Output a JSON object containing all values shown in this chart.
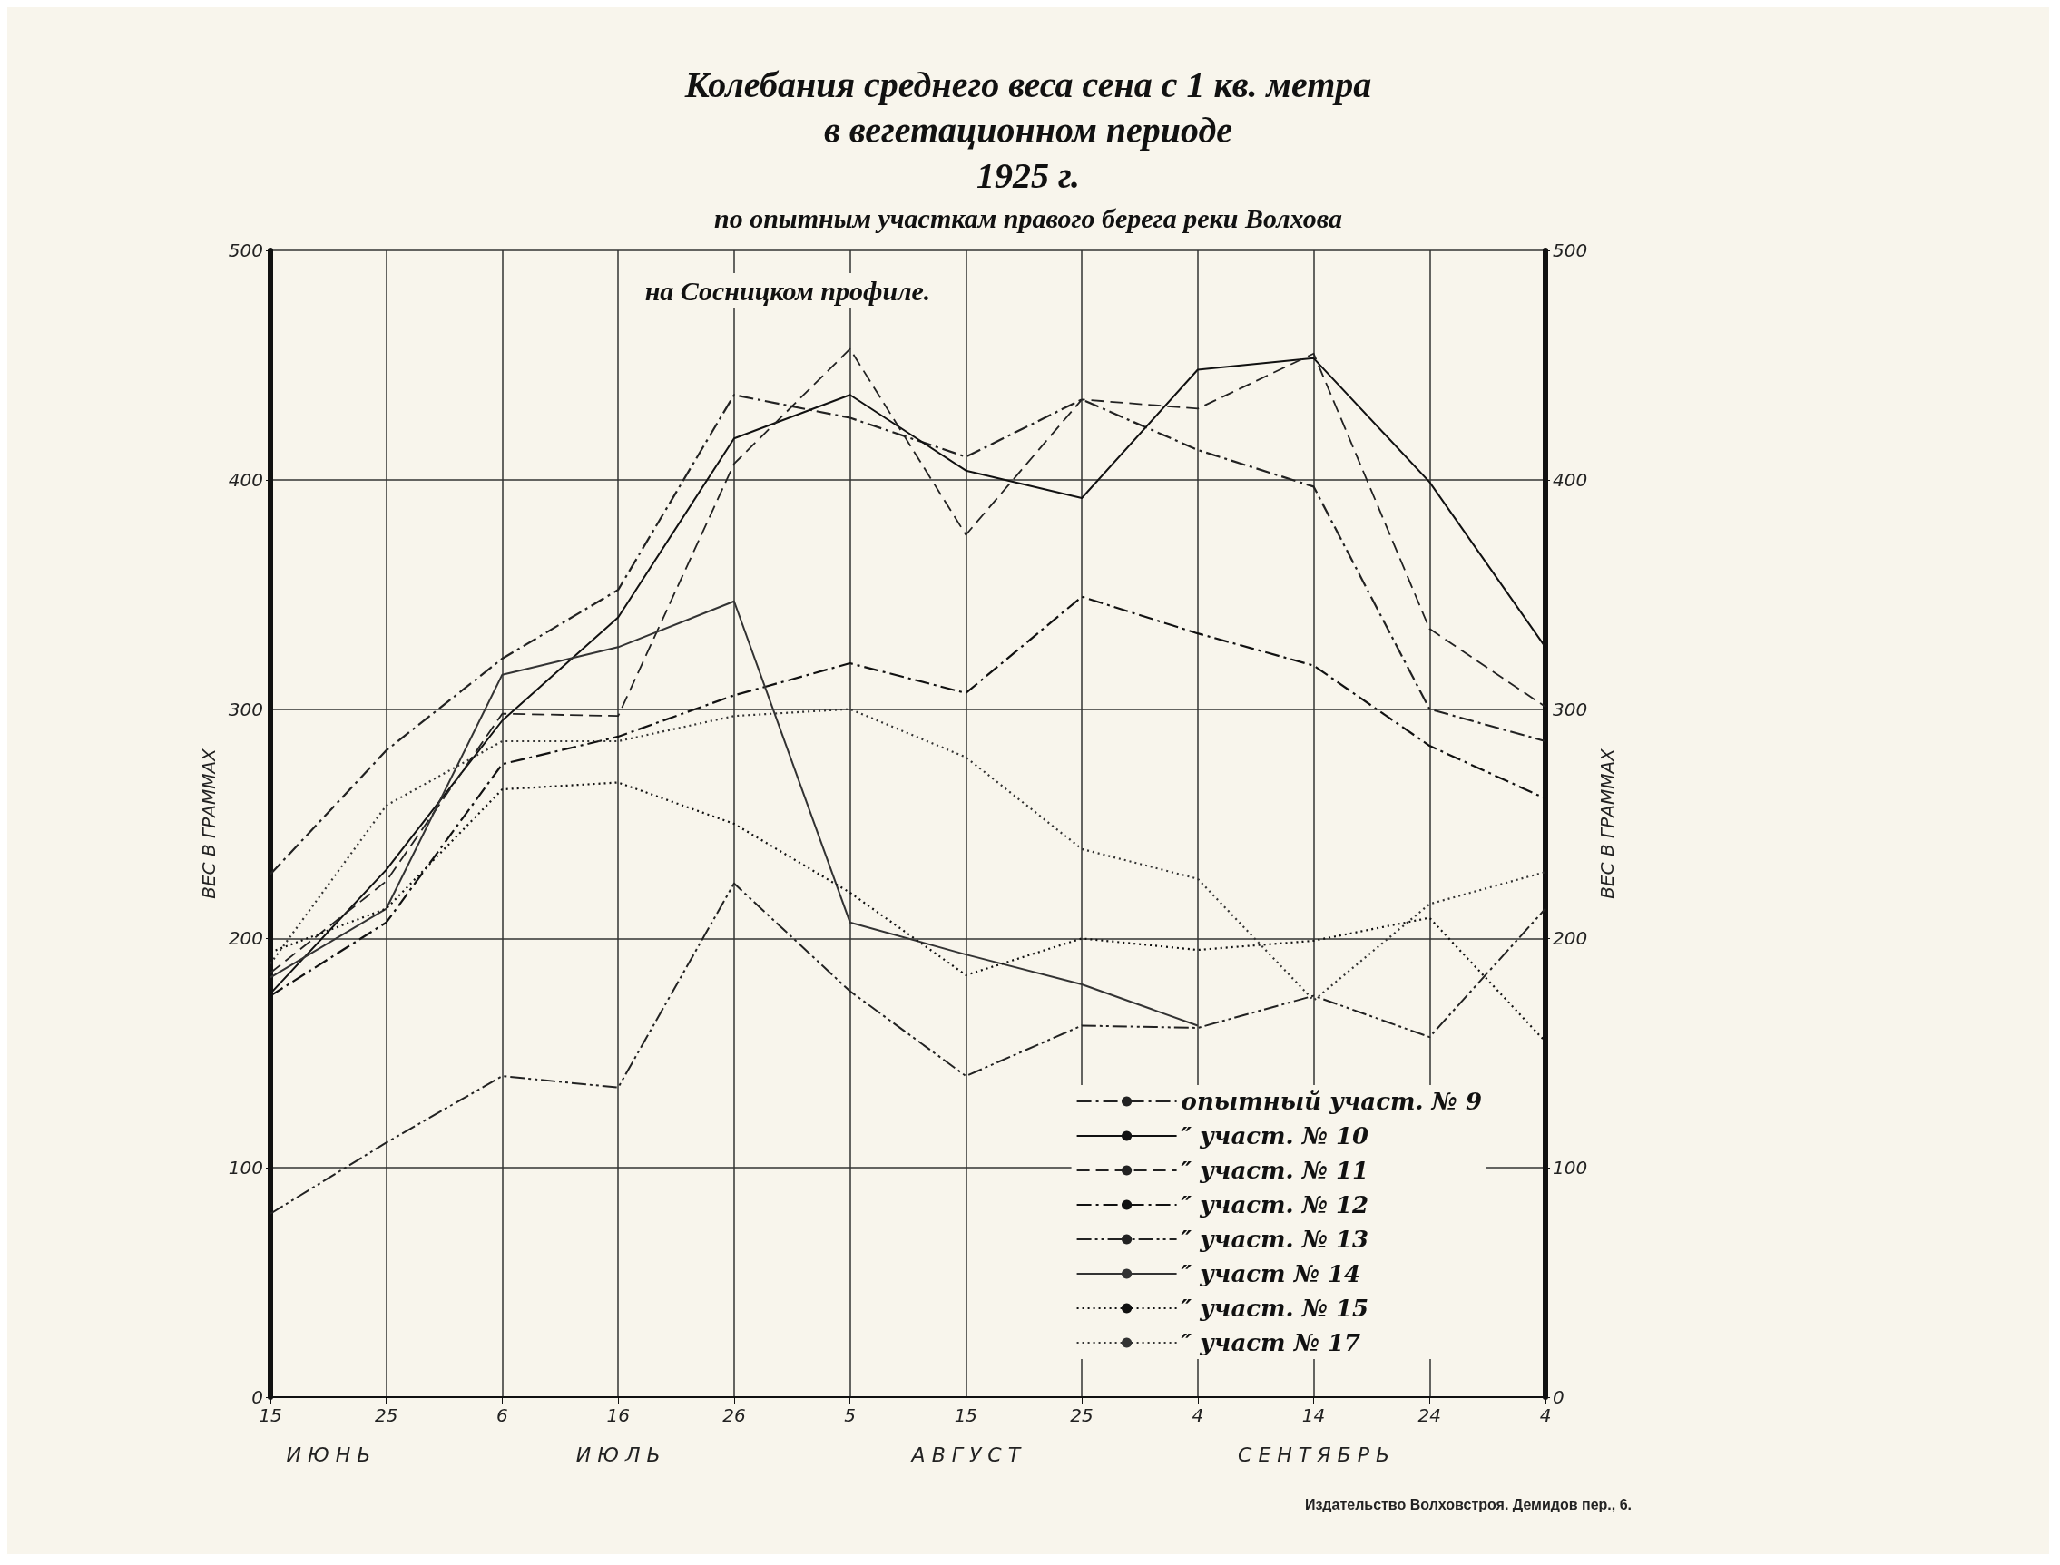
{
  "chart_data": {
    "type": "line",
    "title": "Колебания среднего веса сена с 1 кв. метра\nв вегетационном периоде\n1925 г.",
    "subtitle": "по опытным участкам правого берега реки Волхова",
    "ylabel": "ВЕС В ГРАММАХ",
    "y2label": "ВЕС В ГРАММАХ",
    "categories": [
      "15",
      "25",
      "6",
      "16",
      "26",
      "5",
      "15",
      "25",
      "4",
      "14",
      "24",
      "4"
    ],
    "series": [
      {
        "name": "опытный участ. № 9",
        "color": "#222222",
        "line_style": "dashdot",
        "values": [
          228,
          282,
          322,
          352,
          437,
          427,
          410,
          435,
          413,
          397,
          300,
          286
        ]
      },
      {
        "name": "″ участ. № 10",
        "color": "#111111",
        "line_style": "solid",
        "values": [
          176,
          230,
          295,
          340,
          418,
          437,
          404,
          392,
          448,
          453,
          399,
          327
        ]
      },
      {
        "name": "″ участ. № 11",
        "color": "#222222",
        "line_style": "dashed",
        "values": [
          185,
          225,
          298,
          297,
          407,
          457,
          376,
          435,
          431,
          455,
          335,
          301
        ]
      },
      {
        "name": "″ участ. № 12",
        "color": "#111111",
        "line_style": "dashdot",
        "values": [
          175,
          207,
          276,
          288,
          306,
          320,
          307,
          349,
          333,
          319,
          284,
          261
        ]
      },
      {
        "name": "″ участ. № 13",
        "color": "#222222",
        "line_style": "dashdotdot",
        "values": [
          80,
          111,
          140,
          135,
          224,
          177,
          140,
          162,
          161,
          175,
          157,
          213
        ]
      },
      {
        "name": "″ участ № 14",
        "color": "#333333",
        "line_style": "solid",
        "values": [
          183,
          213,
          315,
          327,
          347,
          207,
          193,
          180,
          162,
          null,
          null,
          null
        ]
      },
      {
        "name": "″ участ. № 15",
        "color": "#111111",
        "line_style": "dotted",
        "values": [
          194,
          213,
          265,
          268,
          250,
          220,
          184,
          200,
          195,
          199,
          209,
          155
        ]
      },
      {
        "name": "″ участ № 17",
        "color": "#333333",
        "line_style": "dotted",
        "values": [
          189,
          258,
          286,
          286,
          297,
          300,
          279,
          239,
          226,
          173,
          215,
          229
        ]
      }
    ],
    "ylim": [
      0,
      500
    ],
    "yticks": [
      0,
      100,
      200,
      300,
      400,
      500
    ],
    "y2lim": [
      0,
      500
    ],
    "y2ticks": [
      0,
      100,
      200,
      300,
      400,
      500
    ],
    "grid": true,
    "legend": "bottom right",
    "marker": "none",
    "annotations": [
      "на Сосницком профиле.",
      "Издательство Волховстроя. Демидов пер., 6.",
      "И Ю Н Ь",
      "И Ю Л Ь",
      "А В Г У С Т",
      "С Е Н Т Я Б Р Ь"
    ]
  }
}
